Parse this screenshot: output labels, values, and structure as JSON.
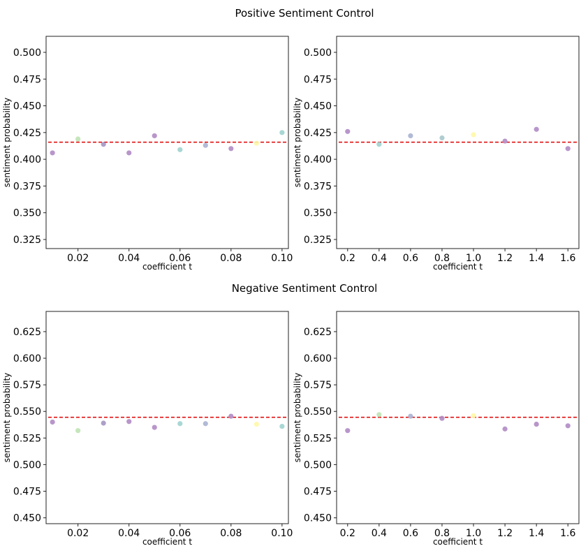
{
  "figure": {
    "groups": [
      {
        "title": "Positive Sentiment Control"
      },
      {
        "title": "Negative Sentiment Control"
      }
    ]
  },
  "chart_data": [
    {
      "type": "scatter",
      "group_title": "Positive Sentiment Control",
      "xlabel": "coefficient t",
      "ylabel": "sentiment probability",
      "xlim": [
        0.0075,
        0.1025
      ],
      "ylim": [
        0.3165,
        0.515
      ],
      "xticks": [
        0.02,
        0.04,
        0.06,
        0.08,
        0.1
      ],
      "xtick_labels": [
        "0.02",
        "0.04",
        "0.06",
        "0.08",
        "0.10"
      ],
      "yticks": [
        0.325,
        0.35,
        0.375,
        0.4,
        0.425,
        0.45,
        0.475,
        0.5
      ],
      "ytick_labels": [
        "0.325",
        "0.350",
        "0.375",
        "0.400",
        "0.425",
        "0.450",
        "0.475",
        "0.500"
      ],
      "reference_line": {
        "y": 0.416,
        "color": "#e00000",
        "style": "dashed"
      },
      "points": [
        {
          "x": 0.01,
          "y": 0.406,
          "color": "#b08bc4"
        },
        {
          "x": 0.02,
          "y": 0.419,
          "color": "#bfe3b4"
        },
        {
          "x": 0.03,
          "y": 0.414,
          "color": "#a595c3"
        },
        {
          "x": 0.04,
          "y": 0.406,
          "color": "#b08bc4"
        },
        {
          "x": 0.05,
          "y": 0.422,
          "color": "#b08bc4"
        },
        {
          "x": 0.06,
          "y": 0.409,
          "color": "#9fd3cf"
        },
        {
          "x": 0.07,
          "y": 0.413,
          "color": "#a9b3d1"
        },
        {
          "x": 0.08,
          "y": 0.41,
          "color": "#b08bc4"
        },
        {
          "x": 0.09,
          "y": 0.415,
          "color": "#fff7a8"
        },
        {
          "x": 0.1,
          "y": 0.425,
          "color": "#9fd3cf"
        }
      ]
    },
    {
      "type": "scatter",
      "group_title": "Positive Sentiment Control",
      "xlabel": "coefficient t",
      "ylabel": "sentiment probability",
      "xlim": [
        0.13,
        1.67
      ],
      "ylim": [
        0.3165,
        0.515
      ],
      "xticks": [
        0.2,
        0.4,
        0.6,
        0.8,
        1.0,
        1.2,
        1.4,
        1.6
      ],
      "xtick_labels": [
        "0.2",
        "0.4",
        "0.6",
        "0.8",
        "1.0",
        "1.2",
        "1.4",
        "1.6"
      ],
      "yticks": [
        0.325,
        0.35,
        0.375,
        0.4,
        0.425,
        0.45,
        0.475,
        0.5
      ],
      "ytick_labels": [
        "0.325",
        "0.350",
        "0.375",
        "0.400",
        "0.425",
        "0.450",
        "0.475",
        "0.500"
      ],
      "reference_line": {
        "y": 0.416,
        "color": "#e00000",
        "style": "dashed"
      },
      "points": [
        {
          "x": 0.2,
          "y": 0.426,
          "color": "#b08bc4"
        },
        {
          "x": 0.4,
          "y": 0.414,
          "color": "#9fd3cf"
        },
        {
          "x": 0.6,
          "y": 0.422,
          "color": "#a9b3d1"
        },
        {
          "x": 0.8,
          "y": 0.42,
          "color": "#a9c8cc"
        },
        {
          "x": 1.0,
          "y": 0.423,
          "color": "#fff7a8"
        },
        {
          "x": 1.2,
          "y": 0.417,
          "color": "#b08bc4"
        },
        {
          "x": 1.4,
          "y": 0.428,
          "color": "#b08bc4"
        },
        {
          "x": 1.6,
          "y": 0.41,
          "color": "#b08bc4"
        }
      ]
    },
    {
      "type": "scatter",
      "group_title": "Negative Sentiment Control",
      "xlabel": "coefficient t",
      "ylabel": "sentiment probability",
      "xlim": [
        0.0075,
        0.1025
      ],
      "ylim": [
        0.4445,
        0.644
      ],
      "xticks": [
        0.02,
        0.04,
        0.06,
        0.08,
        0.1
      ],
      "xtick_labels": [
        "0.02",
        "0.04",
        "0.06",
        "0.08",
        "0.10"
      ],
      "yticks": [
        0.45,
        0.475,
        0.5,
        0.525,
        0.55,
        0.575,
        0.6,
        0.625
      ],
      "ytick_labels": [
        "0.450",
        "0.475",
        "0.500",
        "0.525",
        "0.550",
        "0.575",
        "0.600",
        "0.625"
      ],
      "reference_line": {
        "y": 0.5445,
        "color": "#e00000",
        "style": "dashed"
      },
      "points": [
        {
          "x": 0.01,
          "y": 0.54,
          "color": "#b08bc4"
        },
        {
          "x": 0.02,
          "y": 0.532,
          "color": "#bfe3b4"
        },
        {
          "x": 0.03,
          "y": 0.539,
          "color": "#a595c3"
        },
        {
          "x": 0.04,
          "y": 0.5405,
          "color": "#b08bc4"
        },
        {
          "x": 0.05,
          "y": 0.535,
          "color": "#b08bc4"
        },
        {
          "x": 0.06,
          "y": 0.5385,
          "color": "#9fd3cf"
        },
        {
          "x": 0.07,
          "y": 0.5385,
          "color": "#a9b3d1"
        },
        {
          "x": 0.08,
          "y": 0.5455,
          "color": "#b08bc4"
        },
        {
          "x": 0.09,
          "y": 0.538,
          "color": "#fff7a8"
        },
        {
          "x": 0.1,
          "y": 0.536,
          "color": "#9fd3cf"
        }
      ]
    },
    {
      "type": "scatter",
      "group_title": "Negative Sentiment Control",
      "xlabel": "coefficient t",
      "ylabel": "sentiment probability",
      "xlim": [
        0.13,
        1.67
      ],
      "ylim": [
        0.4445,
        0.644
      ],
      "xticks": [
        0.2,
        0.4,
        0.6,
        0.8,
        1.0,
        1.2,
        1.4,
        1.6
      ],
      "xtick_labels": [
        "0.2",
        "0.4",
        "0.6",
        "0.8",
        "1.0",
        "1.2",
        "1.4",
        "1.6"
      ],
      "yticks": [
        0.45,
        0.475,
        0.5,
        0.525,
        0.55,
        0.575,
        0.6,
        0.625
      ],
      "ytick_labels": [
        "0.450",
        "0.475",
        "0.500",
        "0.525",
        "0.550",
        "0.575",
        "0.600",
        "0.625"
      ],
      "reference_line": {
        "y": 0.5445,
        "color": "#e00000",
        "style": "dashed"
      },
      "points": [
        {
          "x": 0.2,
          "y": 0.532,
          "color": "#b08bc4"
        },
        {
          "x": 0.4,
          "y": 0.547,
          "color": "#bfe3b4"
        },
        {
          "x": 0.6,
          "y": 0.5455,
          "color": "#a9b3d1"
        },
        {
          "x": 0.8,
          "y": 0.5435,
          "color": "#b08bc4"
        },
        {
          "x": 1.0,
          "y": 0.546,
          "color": "#fff7a8"
        },
        {
          "x": 1.2,
          "y": 0.5335,
          "color": "#b08bc4"
        },
        {
          "x": 1.4,
          "y": 0.538,
          "color": "#b08bc4"
        },
        {
          "x": 1.6,
          "y": 0.5365,
          "color": "#b08bc4"
        }
      ]
    }
  ]
}
